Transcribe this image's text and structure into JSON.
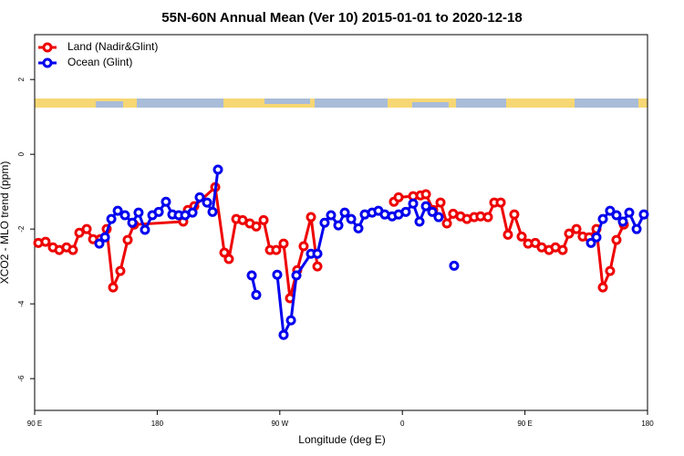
{
  "chart_data": {
    "type": "line",
    "title": "55N-60N Annual Mean (Ver 10)   2015-01-01 to 2020-12-18",
    "x_label": "Longitude (deg E)",
    "y_label": "XCO2 - MLO trend (ppm)",
    "xlim": [
      90,
      540
    ],
    "xticks": [
      {
        "value": 90,
        "label": "90 E"
      },
      {
        "value": 180,
        "label": "180"
      },
      {
        "value": 270,
        "label": "90 W"
      },
      {
        "value": 360,
        "label": "0"
      },
      {
        "value": 450,
        "label": "90 E"
      },
      {
        "value": 540,
        "label": "180"
      }
    ],
    "ylim": [
      -6.85,
      3.2
    ],
    "yticks": [
      -6,
      -4,
      -2,
      0,
      2
    ],
    "legend": "top-left",
    "series": [
      {
        "name": "Land (Nadir&Glint)",
        "color": "#ee0000",
        "x": [
          92.7,
          98.0,
          103.4,
          108.1,
          113.4,
          118.1,
          122.8,
          128.2,
          132.9,
          138.2,
          142.9,
          147.6,
          152.9,
          158.3,
          163.0,
          199.1,
          202.5,
          207.2,
          222.6,
          229.3,
          232.6,
          238.0,
          242.7,
          248.0,
          252.7,
          258.1,
          262.8,
          267.4,
          272.8,
          277.5,
          282.8,
          287.5,
          292.9,
          297.6,
          null,
          353.8,
          357.2,
          367.9,
          373.3,
          377.3,
          382.6,
          388.0,
          392.7,
          397.3,
          402.7,
          407.4,
          412.7,
          417.4,
          422.8,
          427.5,
          432.2,
          437.5,
          442.2,
          447.6,
          452.3,
          457.6,
          462.3,
          467.7,
          472.4,
          477.7,
          482.4,
          487.8,
          492.4,
          497.1,
          502.5,
          507.2,
          512.5,
          517.2,
          522.6
        ],
        "values": [
          -2.37,
          -2.34,
          -2.49,
          -2.56,
          -2.49,
          -2.56,
          -2.1,
          -2.0,
          -2.27,
          -2.27,
          -2.0,
          -3.56,
          -3.12,
          -2.29,
          -1.88,
          -1.8,
          -1.49,
          -1.39,
          -0.88,
          -2.63,
          -2.8,
          -1.73,
          -1.76,
          -1.85,
          -1.93,
          -1.76,
          -2.56,
          -2.56,
          -2.39,
          -3.85,
          -3.1,
          -2.46,
          -1.68,
          -3.0,
          null,
          -1.27,
          -1.15,
          -1.12,
          -1.1,
          -1.07,
          -1.49,
          -1.29,
          -1.85,
          -1.59,
          -1.66,
          -1.73,
          -1.68,
          -1.66,
          -1.68,
          -1.29,
          -1.29,
          -2.15,
          -1.61,
          -2.2,
          -2.39,
          -2.37,
          -2.49,
          -2.56,
          -2.49,
          -2.56,
          -2.12,
          -2.0,
          -2.2,
          -2.22,
          -2.0,
          -3.56,
          -3.12,
          -2.29,
          -1.88
        ]
      },
      {
        "name": "Ocean (Glint)",
        "color": "#0000ee",
        "x": [
          137.5,
          141.6,
          146.3,
          151.0,
          156.3,
          161.7,
          166.3,
          171.0,
          176.4,
          181.1,
          186.4,
          191.1,
          195.8,
          200.5,
          205.9,
          211.2,
          216.6,
          220.6,
          224.6,
          null,
          249.4,
          252.7,
          null,
          268.1,
          272.8,
          278.2,
          282.2,
          292.9,
          297.6,
          302.9,
          307.6,
          313.0,
          317.7,
          322.4,
          327.7,
          332.4,
          337.8,
          342.4,
          347.1,
          352.5,
          357.2,
          362.5,
          367.9,
          372.6,
          377.3,
          382.0,
          386.6,
          null,
          398.0,
          null,
          498.5,
          502.5,
          507.2,
          512.5,
          517.2,
          521.9,
          526.6,
          532.0,
          537.3
        ],
        "values": [
          -2.39,
          -2.22,
          -1.73,
          -1.51,
          -1.63,
          -1.83,
          -1.56,
          -2.02,
          -1.63,
          -1.54,
          -1.27,
          -1.61,
          -1.63,
          -1.63,
          -1.56,
          -1.15,
          -1.29,
          -1.54,
          -0.41,
          null,
          -3.24,
          -3.76,
          null,
          -3.22,
          -4.83,
          -4.44,
          -3.24,
          -2.66,
          -2.66,
          -1.83,
          -1.63,
          -1.9,
          -1.56,
          -1.73,
          -1.98,
          -1.61,
          -1.56,
          -1.51,
          -1.61,
          -1.66,
          -1.61,
          -1.54,
          -1.32,
          -1.8,
          -1.39,
          -1.54,
          -1.68,
          null,
          -2.98,
          null,
          -2.37,
          -2.22,
          -1.73,
          -1.51,
          -1.63,
          -1.8,
          -1.56,
          -2.0,
          -1.61
        ]
      }
    ]
  }
}
